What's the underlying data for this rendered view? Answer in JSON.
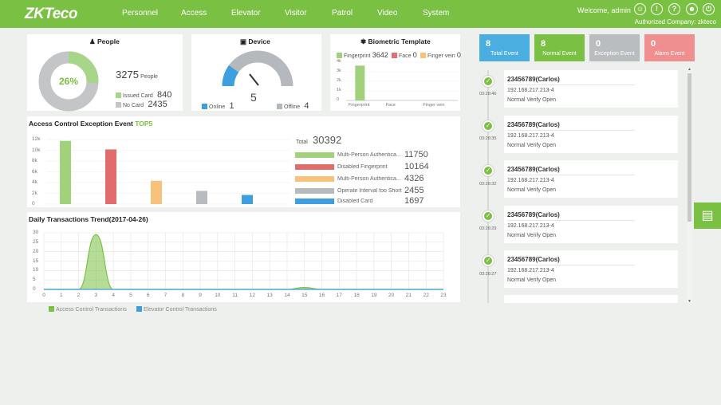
{
  "header": {
    "logo": "ZKTeco",
    "nav": [
      "Personnel",
      "Access",
      "Elevator",
      "Visitor",
      "Patrol",
      "Video",
      "System"
    ],
    "welcome": "Welcome, admin",
    "company": "Authorized Company: zkteco",
    "icons": [
      "user-circle-icon",
      "info-icon",
      "help-icon",
      "account-icon",
      "power-icon"
    ]
  },
  "people": {
    "title": "People",
    "percent": "26%",
    "total": "3275",
    "total_unit": "People",
    "issued_label": "Issued Card",
    "issued_value": "840",
    "nocard_label": "No Card",
    "nocard_value": "2435",
    "issued_fraction": 0.26,
    "colors": {
      "issued": "#a7d68a",
      "nocard": "#c3c5c6"
    }
  },
  "device": {
    "title": "Device",
    "value": "5",
    "online_label": "Online",
    "online_value": "1",
    "offline_label": "Offline",
    "offline_value": "4",
    "online_fraction": 0.2,
    "colors": {
      "online": "#3d9fe0",
      "offline": "#b5b9bd"
    }
  },
  "biometric": {
    "title": "Biometric Template",
    "legend": [
      {
        "label": "Fingerprint",
        "value": "3642",
        "color": "#a1d17b"
      },
      {
        "label": "Face",
        "value": "0",
        "color": "#e26f6f"
      },
      {
        "label": "Finger vein",
        "value": "0",
        "color": "#f8c27a"
      }
    ],
    "chart_data": {
      "type": "bar",
      "categories": [
        "Fingerprint",
        "Face",
        "Finger vein"
      ],
      "values": [
        3642,
        0,
        0
      ],
      "yticks": [
        "4k",
        "3k",
        "2k",
        "1k",
        "0"
      ],
      "ylim": [
        0,
        4000
      ]
    }
  },
  "exception": {
    "title": "Access Control Exception Event",
    "title_accent": "TOP5",
    "total_label": "Total",
    "total_value": "30392",
    "chart_data": {
      "type": "bar",
      "categories": [
        "Multi-Person Authentica...",
        "Disabled Fingerprint",
        "Multi-Person Authentica...",
        "Operate Interval too Short",
        "Disabled Card"
      ],
      "values": [
        11750,
        10164,
        4326,
        2455,
        1697
      ],
      "colors": [
        "#a1d17b",
        "#e06c6c",
        "#f8c27a",
        "#b8bbbe",
        "#3d9fe0"
      ],
      "yticks": [
        "12k",
        "10k",
        "8k",
        "6k",
        "4k",
        "2k",
        "0"
      ],
      "ylim": [
        0,
        12000
      ]
    },
    "legend_values": [
      "11750",
      "10164",
      "4326",
      "2455",
      "1697"
    ]
  },
  "trend": {
    "title": "Daily Transactions Trend(2017-04-26)",
    "legend_access": "Access Control Transactions",
    "legend_elevator": "Elevator Control Transactions",
    "chart_data": {
      "type": "area",
      "x": [
        0,
        1,
        2,
        3,
        4,
        5,
        6,
        7,
        8,
        9,
        10,
        11,
        12,
        13,
        14,
        15,
        16,
        17,
        18,
        19,
        20,
        21,
        22,
        23
      ],
      "series": [
        {
          "name": "Access Control Transactions",
          "values": [
            0,
            0,
            0,
            29,
            0,
            0,
            0,
            0,
            0,
            0,
            0,
            0,
            0,
            0,
            0,
            1,
            0,
            0,
            0,
            0,
            0,
            0,
            0,
            0
          ],
          "color": "#7ac143"
        },
        {
          "name": "Elevator Control Transactions",
          "values": [
            0,
            0,
            0,
            0,
            0,
            0,
            0,
            0,
            0,
            0,
            0,
            0,
            0,
            0,
            0,
            0,
            0,
            0,
            0,
            0,
            0,
            0,
            0,
            0
          ],
          "color": "#3d9fe0"
        }
      ],
      "yticks": [
        "30",
        "25",
        "20",
        "15",
        "10",
        "5",
        "0"
      ],
      "ylim": [
        0,
        30
      ],
      "grid": true
    }
  },
  "events": {
    "summary": [
      {
        "value": "8",
        "label": "Total Event",
        "color": "#4aaee0"
      },
      {
        "value": "8",
        "label": "Normal Event",
        "color": "#7ac143"
      },
      {
        "value": "0",
        "label": "Exception Event",
        "color": "#b9bdc0"
      },
      {
        "value": "0",
        "label": "Alarm Event",
        "color": "#ef8f8f"
      }
    ],
    "records": [
      {
        "time": "03:28:46",
        "name": "23456789(Carlos)",
        "ip": "192.168.217.213-4",
        "status": "Normal Verify Open"
      },
      {
        "time": "03:28:35",
        "name": "23456789(Carlos)",
        "ip": "192.168.217.213-4",
        "status": "Normal Verify Open"
      },
      {
        "time": "03:28:32",
        "name": "23456789(Carlos)",
        "ip": "192.168.217.213-4",
        "status": "Normal Verify Open"
      },
      {
        "time": "03:28:29",
        "name": "23456789(Carlos)",
        "ip": "192.168.217.213-4",
        "status": "Normal Verify Open"
      },
      {
        "time": "03:28:27",
        "name": "23456789(Carlos)",
        "ip": "192.168.217.213-4",
        "status": "Normal Verify Open"
      }
    ]
  }
}
